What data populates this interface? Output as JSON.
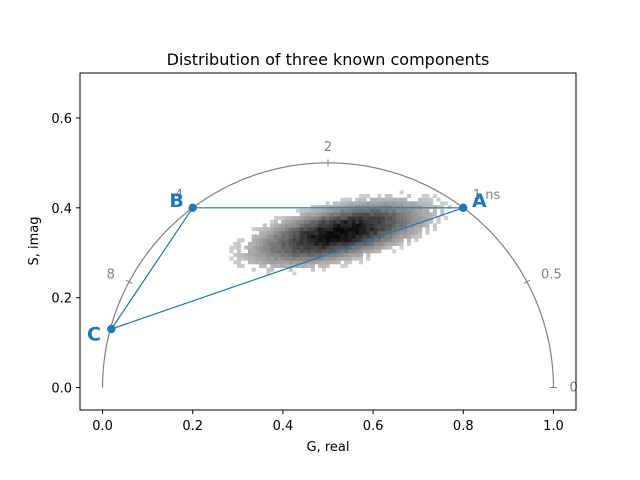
{
  "chart_data": {
    "type": "scatter",
    "title": "Distribution of three known components",
    "xlabel": "G, real",
    "ylabel": "S, imag",
    "xlim": [
      -0.05,
      1.05
    ],
    "ylim": [
      -0.05,
      0.7
    ],
    "xticks": [
      0.0,
      0.2,
      0.4,
      0.6,
      0.8,
      1.0
    ],
    "xtick_labels": [
      "0.0",
      "0.2",
      "0.4",
      "0.6",
      "0.8",
      "1.0"
    ],
    "yticks": [
      0.0,
      0.2,
      0.4,
      0.6
    ],
    "ytick_labels": [
      "0.0",
      "0.2",
      "0.4",
      "0.6"
    ],
    "grid": false,
    "universal_circle": {
      "color": "#808080",
      "lifetime_ticks": [
        {
          "g": 1.0,
          "s": 0.0,
          "label": "0"
        },
        {
          "g": 0.8,
          "s": 0.4,
          "label": "1 ns"
        },
        {
          "g": 0.2,
          "s": 0.4,
          "label": "4"
        },
        {
          "g": 0.5,
          "s": 0.5,
          "label": "2"
        },
        {
          "g": 0.9412,
          "s": 0.2353,
          "label": "0.5"
        },
        {
          "g": 0.0588,
          "s": 0.2353,
          "label": "8"
        }
      ]
    },
    "components": [
      {
        "label": "A",
        "g": 0.8,
        "s": 0.4
      },
      {
        "label": "B",
        "g": 0.2,
        "s": 0.4
      },
      {
        "label": "C",
        "g": 0.0196,
        "s": 0.1302
      }
    ],
    "component_color": "#1f77b4",
    "histogram": {
      "type": "2d-histogram",
      "colormap": "Greys",
      "center": [
        0.52,
        0.34
      ],
      "spread_g": 0.095,
      "spread_s": 0.035,
      "correlation": 0.55
    }
  }
}
